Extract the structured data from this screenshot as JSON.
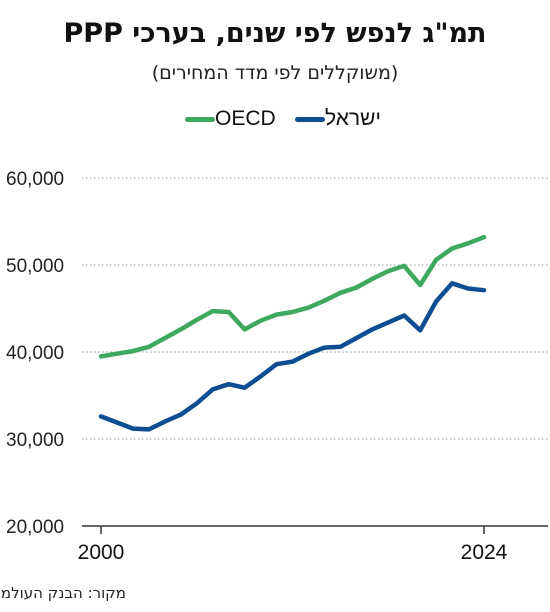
{
  "chart_data": {
    "type": "line",
    "title": "תמ\"ג לנפש לפי שנים, בערכי PPP",
    "subtitle": "(משוקללים לפי מדד המחירים)",
    "source": "מקור: הבנק העולמי",
    "x": [
      2000,
      2001,
      2002,
      2003,
      2004,
      2005,
      2006,
      2007,
      2008,
      2009,
      2010,
      2011,
      2012,
      2013,
      2014,
      2015,
      2016,
      2017,
      2018,
      2019,
      2020,
      2021,
      2022,
      2023,
      2024
    ],
    "x_tick_labels": [
      "2000",
      "2024"
    ],
    "y_tick_labels": [
      "20,000",
      "30,000",
      "40,000",
      "50,000",
      "60,000"
    ],
    "y_ticks": [
      20000,
      30000,
      40000,
      50000,
      60000
    ],
    "ylim": [
      20000,
      60000
    ],
    "xlim": [
      2000,
      2027
    ],
    "grid": true,
    "legend": "top-center",
    "series": [
      {
        "name": "ישראל",
        "color": "#0d4d92",
        "values": [
          32600,
          31900,
          31200,
          31100,
          32000,
          32800,
          34100,
          35700,
          36300,
          35900,
          37200,
          38600,
          38900,
          39800,
          40500,
          40600,
          41600,
          42600,
          43400,
          44200,
          42500,
          45800,
          47900,
          47300,
          47100
        ]
      },
      {
        "name": "OECD",
        "color": "#3ea85e",
        "values": [
          39500,
          39800,
          40100,
          40600,
          41600,
          42600,
          43700,
          44700,
          44600,
          42600,
          43600,
          44300,
          44600,
          45100,
          45900,
          46800,
          47400,
          48400,
          49300,
          49900,
          47700,
          50600,
          51900,
          52500,
          53200
        ]
      }
    ]
  }
}
